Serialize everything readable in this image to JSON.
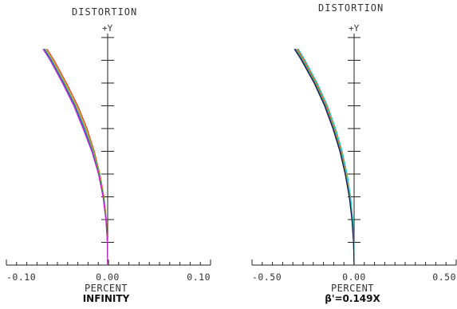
{
  "chart_data": [
    {
      "type": "line",
      "title": "DISTORTION",
      "ylabel": "+Y",
      "xlabel": "PERCENT",
      "condition": "INFINITY",
      "xlim": [
        -0.1,
        0.1
      ],
      "ylim": [
        0,
        1
      ],
      "xticks": [
        "-0.10",
        "0.00",
        "0.10"
      ],
      "y_tick_count": 10,
      "series": [
        {
          "color": "#e03030",
          "x": [
            0,
            -0.0002,
            -0.0012,
            -0.0035,
            -0.0075,
            -0.013,
            -0.02,
            -0.029,
            -0.04,
            -0.052,
            -0.059
          ],
          "y": [
            0,
            0.1,
            0.2,
            0.3,
            0.4,
            0.5,
            0.6,
            0.7,
            0.8,
            0.9,
            0.95
          ]
        },
        {
          "color": "#e8a020",
          "x": [
            0,
            -0.0002,
            -0.0013,
            -0.0037,
            -0.0078,
            -0.0135,
            -0.021,
            -0.03,
            -0.041,
            -0.053,
            -0.06
          ],
          "y": [
            0,
            0.1,
            0.2,
            0.3,
            0.4,
            0.5,
            0.6,
            0.7,
            0.8,
            0.9,
            0.95
          ]
        },
        {
          "color": "#3cb44b",
          "x": [
            0,
            -0.0003,
            -0.0015,
            -0.004,
            -0.0082,
            -0.014,
            -0.022,
            -0.031,
            -0.042,
            -0.054,
            -0.061
          ],
          "y": [
            0,
            0.1,
            0.2,
            0.3,
            0.4,
            0.5,
            0.6,
            0.7,
            0.8,
            0.9,
            0.95
          ]
        },
        {
          "color": "#2040d0",
          "x": [
            0,
            -0.0003,
            -0.0017,
            -0.0044,
            -0.0088,
            -0.015,
            -0.023,
            -0.032,
            -0.043,
            -0.055,
            -0.062
          ],
          "y": [
            0,
            0.1,
            0.2,
            0.3,
            0.4,
            0.5,
            0.6,
            0.7,
            0.8,
            0.9,
            0.95
          ]
        },
        {
          "color": "#d020d0",
          "x": [
            0,
            -0.0003,
            -0.0018,
            -0.0046,
            -0.009,
            -0.0155,
            -0.024,
            -0.033,
            -0.044,
            -0.056,
            -0.063
          ],
          "y": [
            0,
            0.1,
            0.2,
            0.3,
            0.4,
            0.5,
            0.6,
            0.7,
            0.8,
            0.9,
            0.95
          ]
        }
      ]
    },
    {
      "type": "line",
      "title": "DISTORTION",
      "ylabel": "+Y",
      "xlabel": "PERCENT",
      "condition": "β'=0.149X",
      "xlim": [
        -0.5,
        0.5
      ],
      "ylim": [
        0,
        1
      ],
      "xticks": [
        "-0.50",
        "0.00",
        "0.50"
      ],
      "y_tick_count": 10,
      "series": [
        {
          "color": "#e03030",
          "x": [
            0,
            -0.002,
            -0.008,
            -0.02,
            -0.038,
            -0.062,
            -0.095,
            -0.135,
            -0.185,
            -0.245,
            -0.278
          ],
          "y": [
            0,
            0.1,
            0.2,
            0.3,
            0.4,
            0.5,
            0.6,
            0.7,
            0.8,
            0.9,
            0.95
          ]
        },
        {
          "color": "#e8a020",
          "x": [
            0,
            -0.002,
            -0.009,
            -0.021,
            -0.039,
            -0.064,
            -0.097,
            -0.138,
            -0.188,
            -0.248,
            -0.282
          ],
          "y": [
            0,
            0.1,
            0.2,
            0.3,
            0.4,
            0.5,
            0.6,
            0.7,
            0.8,
            0.9,
            0.95
          ]
        },
        {
          "color": "#20d0d0",
          "x": [
            0,
            -0.001,
            -0.006,
            -0.017,
            -0.034,
            -0.058,
            -0.09,
            -0.13,
            -0.18,
            -0.24,
            -0.272
          ],
          "y": [
            0,
            0.1,
            0.2,
            0.3,
            0.4,
            0.5,
            0.6,
            0.7,
            0.8,
            0.9,
            0.95
          ]
        },
        {
          "color": "#3cb44b",
          "x": [
            0,
            -0.002,
            -0.009,
            -0.022,
            -0.041,
            -0.066,
            -0.099,
            -0.14,
            -0.19,
            -0.251,
            -0.285
          ],
          "y": [
            0,
            0.1,
            0.2,
            0.3,
            0.4,
            0.5,
            0.6,
            0.7,
            0.8,
            0.9,
            0.95
          ]
        },
        {
          "color": "#2040d0",
          "x": [
            0,
            -0.003,
            -0.01,
            -0.023,
            -0.043,
            -0.068,
            -0.102,
            -0.143,
            -0.194,
            -0.255,
            -0.29
          ],
          "y": [
            0,
            0.1,
            0.2,
            0.3,
            0.4,
            0.5,
            0.6,
            0.7,
            0.8,
            0.9,
            0.95
          ]
        },
        {
          "color": "#1a1a40",
          "x": [
            0,
            -0.003,
            -0.011,
            -0.024,
            -0.044,
            -0.07,
            -0.104,
            -0.145,
            -0.196,
            -0.258,
            -0.293
          ],
          "y": [
            0,
            0.1,
            0.2,
            0.3,
            0.4,
            0.5,
            0.6,
            0.7,
            0.8,
            0.9,
            0.95
          ]
        }
      ]
    }
  ]
}
